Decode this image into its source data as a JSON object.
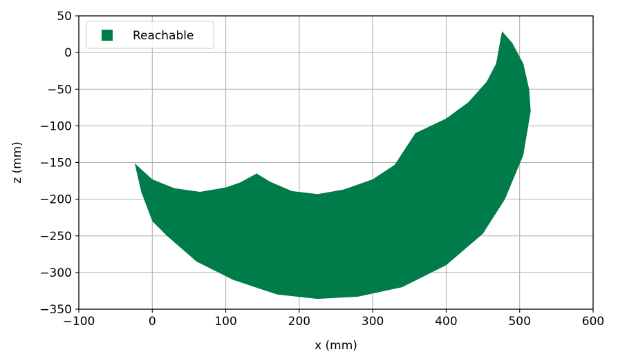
{
  "chart_data": {
    "type": "area",
    "title": "",
    "xlabel": "x (mm)",
    "ylabel": "z (mm)",
    "xlim": [
      -100,
      600
    ],
    "ylim": [
      -350,
      50
    ],
    "xticks": [
      -100,
      0,
      100,
      200,
      300,
      400,
      500,
      600
    ],
    "yticks": [
      -350,
      -300,
      -250,
      -200,
      -150,
      -100,
      -50,
      0,
      50
    ],
    "xtick_labels": [
      "−100",
      "0",
      "100",
      "200",
      "300",
      "400",
      "500",
      "600"
    ],
    "ytick_labels": [
      "−350",
      "−300",
      "−250",
      "−200",
      "−150",
      "−100",
      "−50",
      "0",
      "50"
    ],
    "grid": true,
    "legend_position": "upper-left",
    "colors": {
      "reachable": "#007b4a",
      "grid": "#b0b0b0",
      "axes": "#000000"
    },
    "series": [
      {
        "name": "Reachable",
        "shape": "filled-region",
        "boundary": [
          [
            -24,
            -151
          ],
          [
            0,
            -173
          ],
          [
            30,
            -185
          ],
          [
            65,
            -190
          ],
          [
            100,
            -184
          ],
          [
            120,
            -177
          ],
          [
            142,
            -165
          ],
          [
            160,
            -176
          ],
          [
            190,
            -189
          ],
          [
            225,
            -193
          ],
          [
            260,
            -187
          ],
          [
            300,
            -173
          ],
          [
            330,
            -153
          ],
          [
            358,
            -110
          ],
          [
            400,
            -90
          ],
          [
            430,
            -68
          ],
          [
            455,
            -40
          ],
          [
            468,
            -15
          ],
          [
            476,
            29
          ],
          [
            490,
            13
          ],
          [
            505,
            -15
          ],
          [
            513,
            -50
          ],
          [
            515,
            -80
          ],
          [
            505,
            -140
          ],
          [
            480,
            -200
          ],
          [
            450,
            -247
          ],
          [
            400,
            -290
          ],
          [
            340,
            -320
          ],
          [
            280,
            -333
          ],
          [
            225,
            -336
          ],
          [
            170,
            -330
          ],
          [
            110,
            -310
          ],
          [
            60,
            -285
          ],
          [
            20,
            -250
          ],
          [
            0,
            -230
          ],
          [
            -15,
            -190
          ],
          [
            -24,
            -151
          ]
        ]
      }
    ]
  }
}
